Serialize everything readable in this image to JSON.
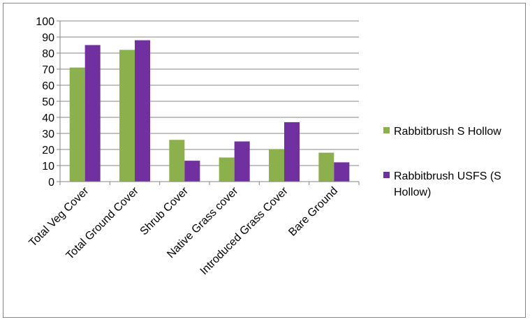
{
  "chart_data": {
    "type": "bar",
    "categories": [
      "Total Veg Cover",
      "Total Ground Cover",
      "Shrub Cover",
      "Native Grass cover",
      "Introduced Grass Cover",
      "Bare Ground"
    ],
    "series": [
      {
        "name": "Rabbitbrush S Hollow",
        "values": [
          71,
          82,
          26,
          15,
          20,
          18
        ],
        "color": "#8CB04B"
      },
      {
        "name": "Rabbitbrush USFS (S Hollow)",
        "values": [
          85,
          88,
          13,
          25,
          37,
          12
        ],
        "color": "#7030A0"
      }
    ],
    "ylim": [
      0,
      100
    ],
    "yticks": [
      0,
      10,
      20,
      30,
      40,
      50,
      60,
      70,
      80,
      90,
      100
    ],
    "grid": true,
    "legend": "right",
    "title": "",
    "xlabel": "",
    "ylabel": ""
  }
}
